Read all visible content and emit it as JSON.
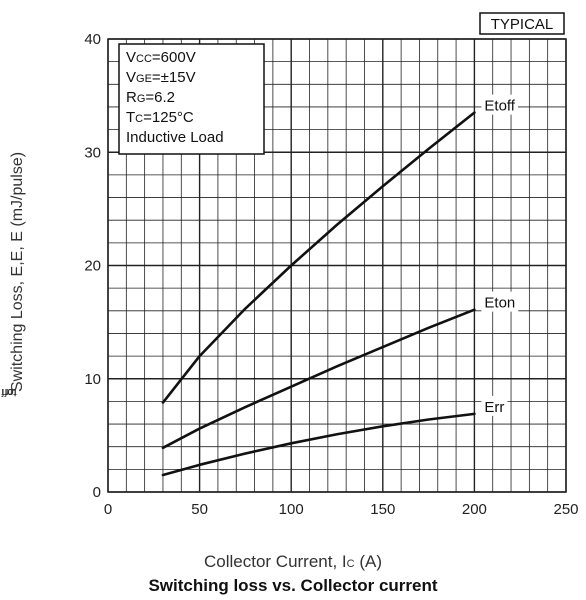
{
  "chart_data": {
    "type": "line",
    "title": "Switching loss vs. Collector current",
    "xlabel_parts": [
      "Collector Current, I",
      "C",
      " (A)"
    ],
    "ylabel_parts": [
      "Switching Loss, E",
      "ton",
      ",E",
      "toff",
      ", E",
      "rr",
      " (mJ/pulse)"
    ],
    "xlim": [
      0,
      250
    ],
    "ylim": [
      0,
      40
    ],
    "x_ticks": [
      0,
      50,
      100,
      150,
      200,
      250
    ],
    "y_ticks": [
      0,
      10,
      20,
      30,
      40
    ],
    "grid": true,
    "badge": "TYPICAL",
    "conditions": [
      {
        "parts": [
          "V",
          "CC",
          "=600V"
        ]
      },
      {
        "parts": [
          "V",
          "GE",
          "=±15V"
        ]
      },
      {
        "parts": [
          "R",
          "G",
          "=6.2"
        ]
      },
      {
        "parts": [
          "T",
          "C",
          "=125°C"
        ]
      },
      {
        "parts": [
          "Inductive Load"
        ]
      }
    ],
    "series": [
      {
        "name": "Etoff",
        "x": [
          30,
          50,
          75,
          100,
          125,
          150,
          175,
          200
        ],
        "y": [
          7.9,
          12.0,
          16.2,
          20.0,
          23.6,
          27.0,
          30.3,
          33.5
        ]
      },
      {
        "name": "Eton",
        "x": [
          30,
          50,
          75,
          100,
          125,
          150,
          175,
          200
        ],
        "y": [
          3.9,
          5.6,
          7.5,
          9.3,
          11.1,
          12.8,
          14.5,
          16.1
        ]
      },
      {
        "name": "Err",
        "x": [
          30,
          50,
          75,
          100,
          125,
          150,
          175,
          200
        ],
        "y": [
          1.5,
          2.4,
          3.4,
          4.3,
          5.1,
          5.8,
          6.4,
          6.9
        ]
      }
    ]
  }
}
